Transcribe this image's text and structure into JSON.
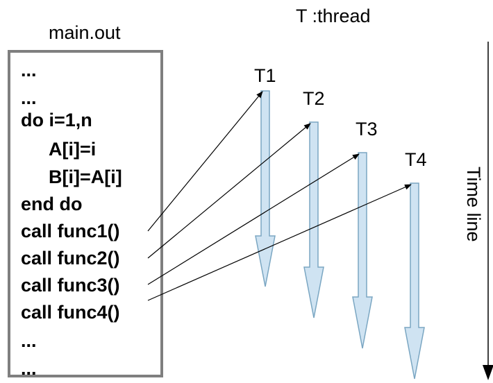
{
  "file_title": "main.out",
  "legend": "T :thread",
  "code_lines": [
    "...",
    "...",
    "do i=1,n",
    "A[i]=i",
    "B[i]=A[i]",
    "end do",
    "call func1()",
    "call func2()",
    "call func3()",
    "call func4()",
    "...",
    "..."
  ],
  "threads": [
    "T1",
    "T2",
    "T3",
    "T4"
  ],
  "timeline_label": "Time line",
  "colors": {
    "thread_fill": "#cfe3f2",
    "thread_stroke": "#7aa6c2",
    "box_border": "#7f7f7f",
    "line": "#000000"
  }
}
